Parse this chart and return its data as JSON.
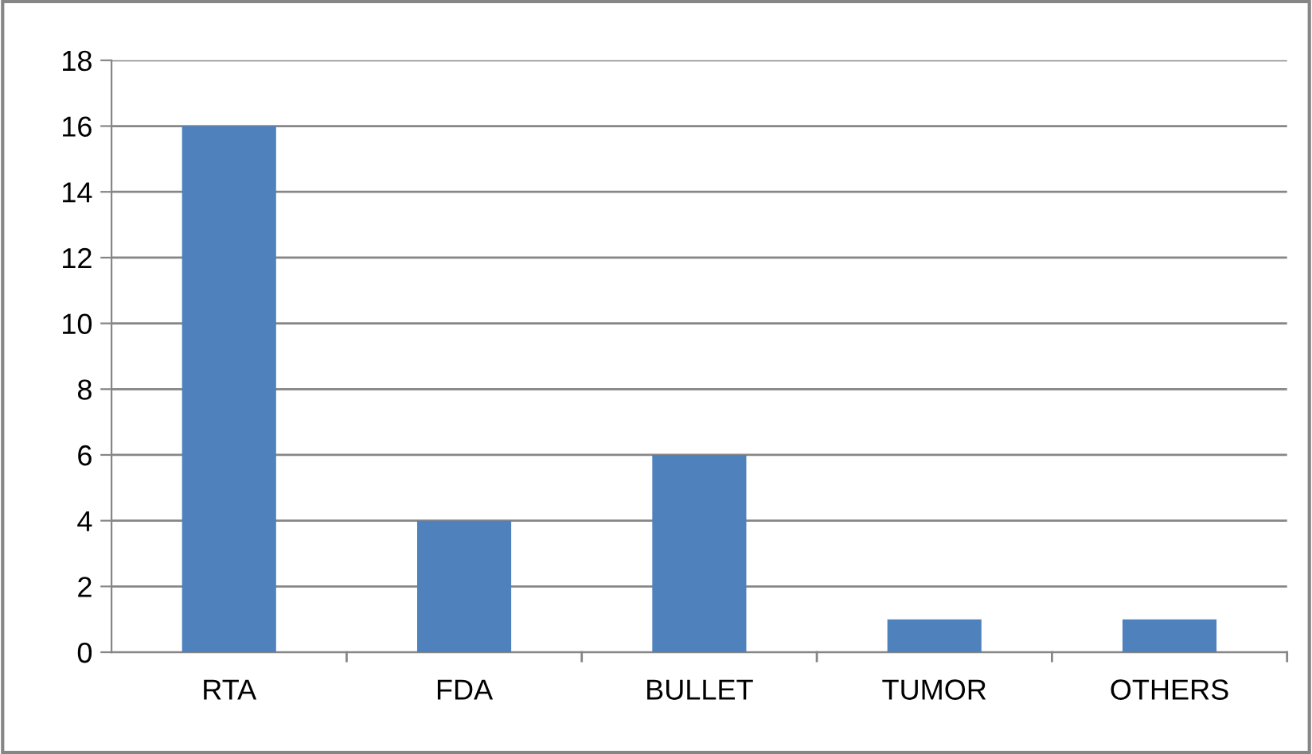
{
  "chart_data": {
    "type": "bar",
    "categories": [
      "RTA",
      "FDA",
      "BULLET",
      "TUMOR",
      "OTHERS"
    ],
    "values": [
      16,
      4,
      6,
      1,
      1
    ],
    "color": "#4f81bd",
    "ylim": [
      0,
      18
    ],
    "yticks": [
      0,
      2,
      4,
      6,
      8,
      10,
      12,
      14,
      16,
      18
    ],
    "grid": "y",
    "legend": false
  }
}
